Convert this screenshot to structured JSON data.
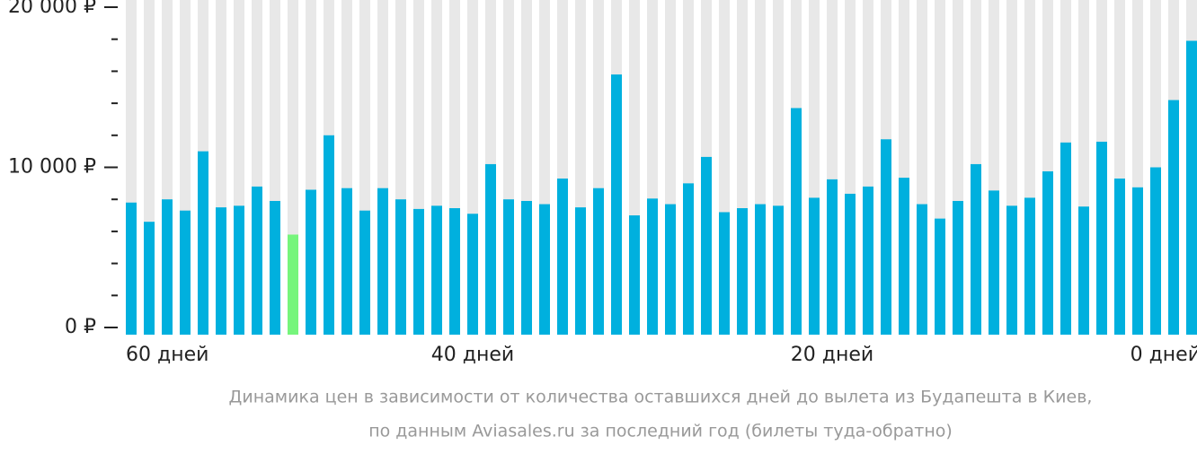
{
  "chart_data": {
    "type": "bar",
    "categories": [
      "60 дней",
      null,
      null,
      null,
      null,
      null,
      null,
      null,
      null,
      null,
      null,
      null,
      null,
      null,
      null,
      null,
      null,
      null,
      null,
      "40 дней",
      null,
      null,
      null,
      null,
      null,
      null,
      null,
      null,
      null,
      null,
      null,
      null,
      null,
      null,
      null,
      null,
      null,
      null,
      null,
      "20 дней",
      null,
      null,
      null,
      null,
      null,
      null,
      null,
      null,
      null,
      null,
      null,
      null,
      null,
      null,
      null,
      null,
      null,
      null,
      null,
      "0 дней"
    ],
    "values": [
      7800,
      6600,
      8000,
      7300,
      11000,
      7500,
      7600,
      8800,
      7900,
      5800,
      8600,
      12000,
      8700,
      7300,
      8700,
      8000,
      7400,
      7600,
      7450,
      7100,
      10200,
      8000,
      7900,
      7700,
      9300,
      7500,
      8700,
      15800,
      7000,
      8050,
      7700,
      9000,
      10650,
      7200,
      7450,
      7700,
      7600,
      13700,
      8100,
      9250,
      8350,
      8800,
      11750,
      9350,
      7700,
      6800,
      7900,
      10200,
      8550,
      7600,
      8100,
      9750,
      11550,
      7550,
      11600,
      9300,
      8750,
      10000,
      14200,
      17900
    ],
    "color": "#00b0de",
    "highlight_color": "#76f57c",
    "highlight_index": 9,
    "ylim": [
      0,
      20000
    ],
    "yticks": [
      {
        "value": 0,
        "label": "0 ₽"
      },
      {
        "value": 10000,
        "label": "10 000 ₽"
      },
      {
        "value": 20000,
        "label": "20 000 ₽"
      }
    ],
    "minor_yticks": [
      2000,
      4000,
      6000,
      8000,
      12000,
      14000,
      16000,
      18000
    ],
    "caption": [
      "Динамика цен в зависимости от количества оставшихся дней до вылета из Будапешта в Киев,",
      "по данным Aviasales.ru за последний год (билеты туда-обратно)"
    ]
  }
}
